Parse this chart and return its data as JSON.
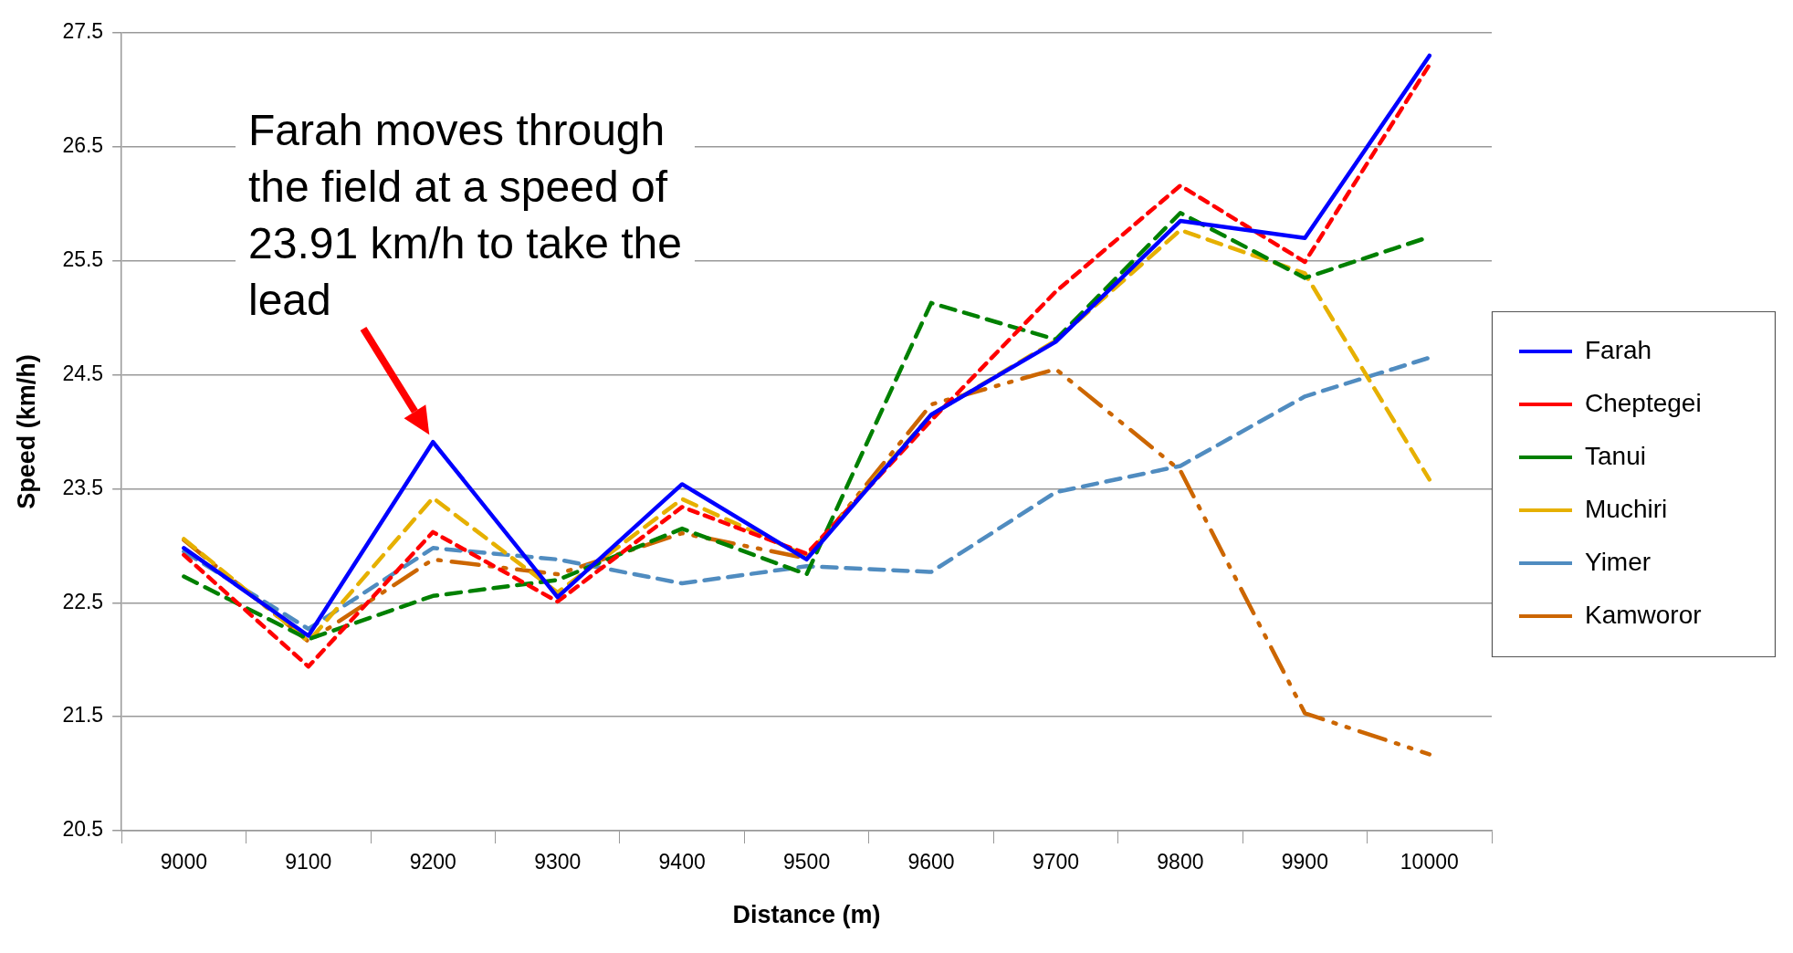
{
  "chart_data": {
    "type": "line",
    "xlabel": "Distance (m)",
    "ylabel": "Speed (km/h)",
    "categories": [
      "9000",
      "9100",
      "9200",
      "9300",
      "9400",
      "9500",
      "9600",
      "9700",
      "9800",
      "9900",
      "10000"
    ],
    "series": [
      {
        "name": "Farah",
        "color": "#0000ff",
        "line_style": "solid",
        "values": [
          22.98,
          22.21,
          23.91,
          22.55,
          23.54,
          22.88,
          24.15,
          24.79,
          25.85,
          25.7,
          27.3
        ]
      },
      {
        "name": "Cheptegei",
        "color": "#ff0000",
        "line_style": "dashed",
        "values": [
          22.92,
          21.94,
          23.12,
          22.51,
          23.34,
          22.93,
          24.1,
          25.23,
          26.16,
          25.49,
          27.22
        ]
      },
      {
        "name": "Tanui",
        "color": "#008000",
        "line_style": "dashed",
        "values": [
          22.73,
          22.18,
          22.56,
          22.7,
          23.15,
          22.75,
          25.13,
          24.81,
          25.92,
          25.35,
          25.71
        ]
      },
      {
        "name": "Muchiri",
        "color": "#e6b000",
        "line_style": "dashed",
        "values": [
          23.06,
          22.16,
          23.42,
          22.59,
          23.41,
          22.91,
          24.15,
          24.8,
          25.77,
          25.39,
          23.58
        ]
      },
      {
        "name": "Yimer",
        "color": "#508cc0",
        "line_style": "dashed",
        "values": [
          22.95,
          22.27,
          22.98,
          22.88,
          22.67,
          22.82,
          22.77,
          23.47,
          23.7,
          24.31,
          24.65
        ]
      },
      {
        "name": "Kamworor",
        "color": "#cc6600",
        "line_style": "dashdotdot",
        "values": [
          23.05,
          22.16,
          22.88,
          22.75,
          23.11,
          22.89,
          24.24,
          24.55,
          23.66,
          21.53,
          21.17
        ]
      }
    ],
    "ylim": [
      20.5,
      27.5
    ],
    "yticks": [
      20.5,
      21.5,
      22.5,
      23.5,
      24.5,
      25.5,
      26.5,
      27.5
    ],
    "grid": "y",
    "legend": "right",
    "marker": "none",
    "annotations": [
      {
        "text": "Farah moves through the field at a speed of 23.91 km/h to take the lead",
        "x": "9200",
        "y": 23.91
      }
    ]
  }
}
